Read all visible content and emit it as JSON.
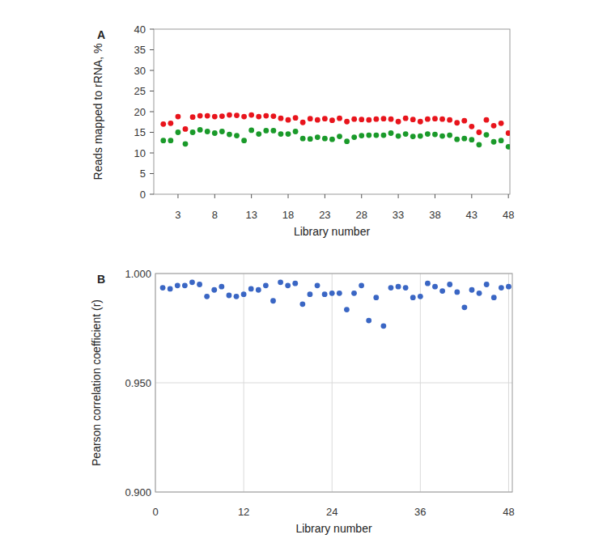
{
  "chart_data": [
    {
      "type": "scatter",
      "title": "A",
      "x_label": "Library number",
      "y_label": "Reads mapped to rRNA, %",
      "x": [
        1,
        2,
        3,
        4,
        5,
        6,
        7,
        8,
        9,
        10,
        11,
        12,
        13,
        14,
        15,
        16,
        17,
        18,
        19,
        20,
        21,
        22,
        23,
        24,
        25,
        26,
        27,
        28,
        29,
        30,
        31,
        32,
        33,
        34,
        35,
        36,
        37,
        38,
        39,
        40,
        41,
        42,
        43,
        44,
        45,
        46,
        47,
        48
      ],
      "series": [
        {
          "color": "#e8141c",
          "marker": "circle",
          "values": [
            17,
            17.2,
            18.8,
            15.8,
            18.7,
            19,
            19,
            18.8,
            18.9,
            19.2,
            19.1,
            18.8,
            19.2,
            18.8,
            19,
            18.9,
            18.4,
            18,
            18.5,
            17.4,
            18.3,
            18,
            18.3,
            17.9,
            18.4,
            17.6,
            18.2,
            18.1,
            18,
            18.2,
            18.3,
            18.2,
            17.6,
            18.4,
            18.1,
            17.6,
            18.2,
            18.3,
            18.2,
            18,
            17.3,
            17.8,
            16.4,
            15,
            18,
            16.6,
            17.2,
            14.8
          ]
        },
        {
          "color": "#1a9a2a",
          "marker": "circle",
          "values": [
            13,
            13,
            15,
            12.2,
            15,
            15.6,
            15.2,
            14.8,
            15.2,
            14.5,
            14.2,
            13,
            15.5,
            14.6,
            15.4,
            15.4,
            14.6,
            14.6,
            15.2,
            13.5,
            13.4,
            13.8,
            13.5,
            13.3,
            14,
            12.8,
            13.8,
            14.2,
            14.3,
            14.3,
            14.3,
            14.8,
            14.1,
            14.6,
            14,
            14.1,
            14.6,
            14.5,
            14.1,
            14.3,
            13.3,
            13.5,
            13.2,
            12,
            14.4,
            12.7,
            13,
            11.5
          ]
        }
      ],
      "xlim": [
        -0.3,
        48.2
      ],
      "xticks": [
        3,
        8,
        13,
        18,
        23,
        28,
        33,
        38,
        43,
        48
      ],
      "ylim": [
        0,
        40
      ],
      "yticks": [
        0,
        5,
        10,
        15,
        20,
        25,
        30,
        35,
        40
      ],
      "grid": false
    },
    {
      "type": "scatter",
      "title": "B",
      "x_label": "Library number",
      "y_label": "Pearson correlation coefficient (r)",
      "x": [
        1,
        2,
        3,
        4,
        5,
        6,
        7,
        8,
        9,
        10,
        11,
        12,
        13,
        14,
        15,
        16,
        17,
        18,
        19,
        20,
        21,
        22,
        23,
        24,
        25,
        26,
        27,
        28,
        29,
        30,
        31,
        32,
        33,
        34,
        35,
        36,
        37,
        38,
        39,
        40,
        41,
        42,
        43,
        44,
        45,
        46,
        47,
        48
      ],
      "series": [
        {
          "color": "#3a66c4",
          "marker": "circle",
          "values": [
            0.9935,
            0.993,
            0.9945,
            0.9945,
            0.996,
            0.995,
            0.9895,
            0.9925,
            0.994,
            0.99,
            0.9895,
            0.9905,
            0.993,
            0.9925,
            0.9945,
            0.9875,
            0.996,
            0.9945,
            0.9955,
            0.986,
            0.9905,
            0.9945,
            0.9905,
            0.991,
            0.991,
            0.9835,
            0.991,
            0.9945,
            0.9785,
            0.989,
            0.976,
            0.9935,
            0.994,
            0.9935,
            0.989,
            0.9895,
            0.9955,
            0.994,
            0.992,
            0.995,
            0.9915,
            0.9845,
            0.9925,
            0.991,
            0.995,
            0.989,
            0.9935,
            0.994
          ]
        }
      ],
      "xlim": [
        0,
        48.5
      ],
      "xticks": [
        0,
        12,
        24,
        36,
        48
      ],
      "ylim": [
        0.9,
        1.0
      ],
      "yticks": [
        {
          "value": 0.9,
          "label": "0.900"
        },
        {
          "value": 0.95,
          "label": "0.950"
        },
        {
          "value": 1.0,
          "label": "1.000"
        }
      ],
      "grid": true
    }
  ]
}
